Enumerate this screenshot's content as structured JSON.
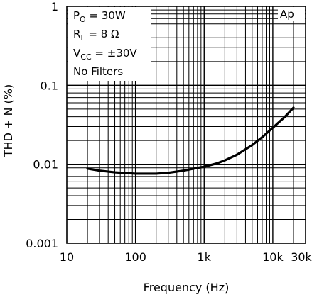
{
  "chart_data": {
    "type": "line",
    "title": "",
    "xlabel": "Frequency (Hz)",
    "ylabel": "THD + N (%)",
    "x_scale": "log",
    "y_scale": "log",
    "xlim": [
      10,
      30000
    ],
    "ylim": [
      0.001,
      1
    ],
    "grid": true,
    "x_tick_labels": [
      {
        "value": 10,
        "label": "10"
      },
      {
        "value": 100,
        "label": "100"
      },
      {
        "value": 1000,
        "label": "1k"
      },
      {
        "value": 10000,
        "label": "10k"
      },
      {
        "value": 30000,
        "label": "30k"
      }
    ],
    "y_tick_labels": [
      {
        "value": 1,
        "label": "1"
      },
      {
        "value": 0.1,
        "label": "0.1"
      },
      {
        "value": 0.01,
        "label": "0.01"
      },
      {
        "value": 0.001,
        "label": "0.001"
      }
    ],
    "conditions": {
      "po": "30W",
      "rl": "8 Ω",
      "vcc": "±30V",
      "filters": "No Filters"
    },
    "badge": "Ap",
    "series": [
      {
        "x": [
          20,
          30,
          50,
          80,
          100,
          150,
          200,
          300,
          500,
          800,
          1000,
          1500,
          2000,
          3000,
          5000,
          7000,
          10000,
          15000,
          20000
        ],
        "y": [
          0.0088,
          0.0083,
          0.0079,
          0.0077,
          0.0076,
          0.0076,
          0.0076,
          0.0078,
          0.0083,
          0.009,
          0.0093,
          0.0102,
          0.0112,
          0.0132,
          0.0175,
          0.022,
          0.029,
          0.04,
          0.052
        ]
      }
    ]
  }
}
